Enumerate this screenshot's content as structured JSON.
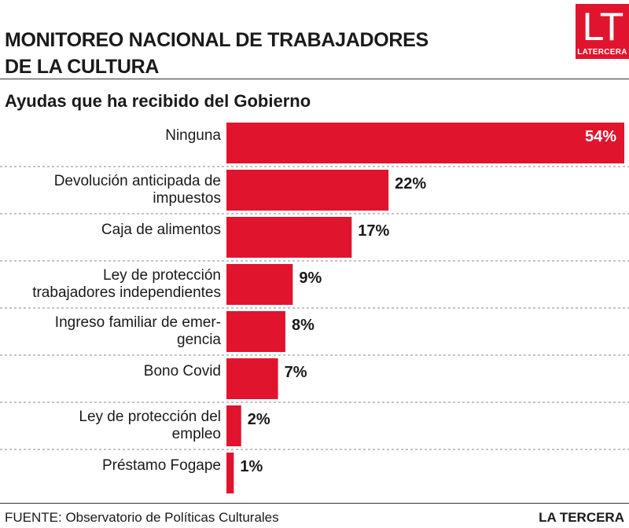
{
  "header": {
    "title_line1": "MONITOREO NACIONAL DE TRABAJADORES",
    "title_line2": "DE LA CULTURA",
    "logo_mark": "LT",
    "logo_text": "LATERCERA"
  },
  "footer": {
    "source": "FUENTE: Observatorio de Políticas Culturales",
    "brand": "LA TERCERA"
  },
  "colors": {
    "bar": "#e1142d",
    "label_inside": "#ffffff",
    "label_outside": "#1a1a1a"
  },
  "chart_data": {
    "type": "bar",
    "orientation": "horizontal",
    "title": "Ayudas que ha recibido del Gobierno",
    "categories": [
      [
        "Ninguna"
      ],
      [
        "Devolución anticipada de",
        "impuestos"
      ],
      [
        "Caja de alimentos"
      ],
      [
        "Ley de protección",
        "trabajadores independientes"
      ],
      [
        "Ingreso familiar de emer-",
        "gencia"
      ],
      [
        "Bono Covid"
      ],
      [
        "Ley de protección del",
        "empleo"
      ],
      [
        "Préstamo Fogape"
      ]
    ],
    "values": [
      54,
      22,
      17,
      9,
      8,
      7,
      2,
      1
    ],
    "value_labels": [
      "54%",
      "22%",
      "17%",
      "9%",
      "8%",
      "7%",
      "2%",
      "1%"
    ],
    "xlim": [
      0,
      54
    ],
    "grid": false,
    "legend": "none"
  }
}
